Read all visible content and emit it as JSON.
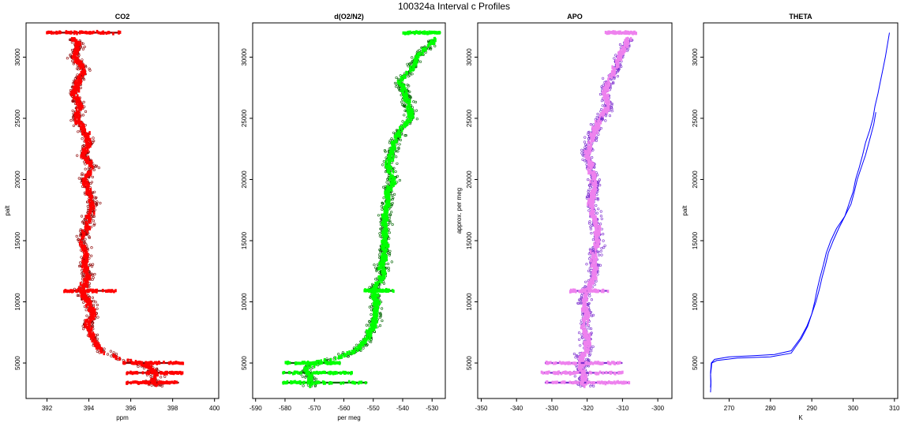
{
  "title": "100324a   Interval c Profiles",
  "chart_data": [
    {
      "type": "scatter",
      "title": "CO2",
      "xlabel": "ppm",
      "ylabel": "palt",
      "xlim": [
        391.0,
        400.2
      ],
      "ylim": [
        2100,
        32800
      ],
      "xticks": [
        392,
        394,
        396,
        398,
        400
      ],
      "yticks": [
        5000,
        10000,
        15000,
        20000,
        25000,
        30000
      ],
      "colors": {
        "points": "#ff0000",
        "outline": "#8b0000"
      },
      "series": [
        {
          "profile": [
            [
              393.0,
              32000
            ],
            [
              393.5,
              31000
            ],
            [
              393.3,
              30000
            ],
            [
              393.8,
              29000
            ],
            [
              393.5,
              28000
            ],
            [
              393.3,
              27000
            ],
            [
              393.6,
              26000
            ],
            [
              393.4,
              25000
            ],
            [
              393.8,
              24000
            ],
            [
              394.0,
              23000
            ],
            [
              393.7,
              22000
            ],
            [
              394.2,
              21000
            ],
            [
              393.8,
              20000
            ],
            [
              394.0,
              19000
            ],
            [
              394.2,
              18000
            ],
            [
              394.0,
              17000
            ],
            [
              393.9,
              16000
            ],
            [
              393.6,
              15000
            ],
            [
              393.9,
              14000
            ],
            [
              393.8,
              13000
            ],
            [
              394.0,
              12000
            ],
            [
              393.6,
              11000
            ],
            [
              394.0,
              10000
            ],
            [
              394.2,
              9000
            ],
            [
              393.9,
              8000
            ],
            [
              394.2,
              7000
            ],
            [
              394.6,
              6000
            ],
            [
              395.5,
              5300
            ],
            [
              396.5,
              5000
            ],
            [
              397.0,
              4500
            ],
            [
              397.2,
              4000
            ],
            [
              397.0,
              3500
            ],
            [
              397.5,
              3000
            ]
          ],
          "legs": [
            [
              392.0,
              395.5,
              32000
            ],
            [
              392.8,
              395.3,
              10900
            ],
            [
              395.6,
              398.5,
              5000
            ],
            [
              395.8,
              398.5,
              4200
            ],
            [
              395.8,
              398.3,
              3400
            ]
          ]
        }
      ]
    },
    {
      "type": "scatter",
      "title": "d(O2/N2)",
      "xlabel": "per meg",
      "ylabel": "",
      "xlim": [
        -591.0,
        -525.5
      ],
      "ylim": [
        2100,
        32800
      ],
      "xticks": [
        -590,
        -580,
        -570,
        -560,
        -550,
        -540,
        -530
      ],
      "yticks": [
        5000,
        10000,
        15000,
        20000,
        25000,
        30000
      ],
      "colors": {
        "points": "#00ff00",
        "outline": "#006400"
      },
      "series": [
        {
          "profile": [
            [
              -527,
              32000
            ],
            [
              -531,
              31000
            ],
            [
              -535,
              30000
            ],
            [
              -537,
              29000
            ],
            [
              -541,
              28000
            ],
            [
              -539,
              27000
            ],
            [
              -538,
              26000
            ],
            [
              -537,
              25000
            ],
            [
              -541,
              24000
            ],
            [
              -543,
              23000
            ],
            [
              -544,
              22000
            ],
            [
              -545,
              21000
            ],
            [
              -543,
              20000
            ],
            [
              -545,
              19000
            ],
            [
              -545,
              18000
            ],
            [
              -546,
              17000
            ],
            [
              -546,
              16000
            ],
            [
              -546,
              15000
            ],
            [
              -546,
              14000
            ],
            [
              -547,
              13000
            ],
            [
              -547,
              12000
            ],
            [
              -550,
              11000
            ],
            [
              -549,
              10000
            ],
            [
              -549,
              9000
            ],
            [
              -550,
              8000
            ],
            [
              -552,
              7000
            ],
            [
              -556,
              6000
            ],
            [
              -562,
              5400
            ],
            [
              -570,
              5000
            ],
            [
              -573,
              4500
            ],
            [
              -572,
              4000
            ],
            [
              -571,
              3500
            ],
            [
              -571,
              3000
            ]
          ],
          "legs": [
            [
              -540,
              -527,
              32000
            ],
            [
              -553,
              -543,
              10900
            ],
            [
              -580,
              -561,
              5000
            ],
            [
              -581,
              -557,
              4200
            ],
            [
              -581,
              -552,
              3400
            ]
          ]
        }
      ]
    },
    {
      "type": "scatter",
      "title": "APO",
      "xlabel": "",
      "ylabel": "approx. per meg",
      "xlim": [
        -351.0,
        -296.0
      ],
      "ylim": [
        2100,
        32800
      ],
      "xticks": [
        -350,
        -340,
        -330,
        -320,
        -310,
        -300
      ],
      "yticks": [
        5000,
        10000,
        15000,
        20000,
        25000,
        30000
      ],
      "colors": {
        "points": "#ee82ee",
        "outline": "#7b2ccf"
      },
      "series": [
        {
          "profile": [
            [
              -308,
              32000
            ],
            [
              -309,
              31000
            ],
            [
              -311,
              30000
            ],
            [
              -312,
              29000
            ],
            [
              -314,
              28000
            ],
            [
              -315,
              27000
            ],
            [
              -314,
              26000
            ],
            [
              -316,
              25000
            ],
            [
              -318,
              24000
            ],
            [
              -319,
              23000
            ],
            [
              -320,
              22000
            ],
            [
              -319,
              21000
            ],
            [
              -318,
              20000
            ],
            [
              -318,
              19000
            ],
            [
              -319,
              18000
            ],
            [
              -318,
              17000
            ],
            [
              -317,
              16000
            ],
            [
              -317,
              15000
            ],
            [
              -318,
              14000
            ],
            [
              -318,
              13000
            ],
            [
              -318,
              12000
            ],
            [
              -320,
              11000
            ],
            [
              -321,
              10000
            ],
            [
              -320,
              9000
            ],
            [
              -321,
              8000
            ],
            [
              -320,
              7000
            ],
            [
              -320,
              6000
            ],
            [
              -322,
              5400
            ],
            [
              -321,
              5000
            ],
            [
              -322,
              4500
            ],
            [
              -321,
              4000
            ],
            [
              -321,
              3500
            ],
            [
              -320,
              3000
            ]
          ],
          "legs": [
            [
              -315,
              -306,
              32000
            ],
            [
              -325,
              -314,
              10900
            ],
            [
              -332,
              -310,
              5000
            ],
            [
              -333,
              -310,
              4200
            ],
            [
              -332,
              -308,
              3400
            ]
          ]
        }
      ]
    },
    {
      "type": "line",
      "title": "THETA",
      "xlabel": "K",
      "ylabel": "palt",
      "xlim": [
        263.8,
        310.8
      ],
      "ylim": [
        2100,
        32800
      ],
      "xticks": [
        270,
        280,
        290,
        300,
        310
      ],
      "yticks": [
        5000,
        10000,
        15000,
        20000,
        25000,
        30000
      ],
      "colors": {
        "line": "#0000ff"
      },
      "series": [
        {
          "name": "",
          "points": [
            [
              265.5,
              2600
            ],
            [
              265.6,
              3200
            ],
            [
              265.5,
              4000
            ],
            [
              265.7,
              4600
            ],
            [
              265.8,
              5000
            ],
            [
              267.0,
              5200
            ],
            [
              272.0,
              5400
            ],
            [
              280.0,
              5500
            ],
            [
              285.0,
              5800
            ],
            [
              287.5,
              7000
            ],
            [
              289.0,
              8000
            ],
            [
              290.0,
              9000
            ],
            [
              291.0,
              10000
            ],
            [
              291.8,
              11000
            ],
            [
              292.5,
              12000
            ],
            [
              293.3,
              13000
            ],
            [
              294.0,
              14000
            ],
            [
              295.2,
              15000
            ],
            [
              296.5,
              16000
            ],
            [
              298.0,
              17000
            ],
            [
              299.0,
              18000
            ],
            [
              300.0,
              19000
            ],
            [
              300.6,
              20000
            ],
            [
              301.5,
              21000
            ],
            [
              302.3,
              22000
            ],
            [
              303.0,
              23000
            ],
            [
              304.0,
              24000
            ],
            [
              304.8,
              25000
            ],
            [
              305.3,
              26000
            ],
            [
              306.0,
              27000
            ],
            [
              306.6,
              28000
            ],
            [
              307.2,
              29000
            ],
            [
              307.8,
              30000
            ],
            [
              308.3,
              31000
            ],
            [
              308.8,
              32000
            ]
          ]
        },
        {
          "name": "",
          "points": [
            [
              305.5,
              25500
            ],
            [
              305.0,
              24500
            ],
            [
              304.2,
              23500
            ],
            [
              303.0,
              22000
            ],
            [
              302.0,
              21000
            ],
            [
              301.0,
              20000
            ],
            [
              300.3,
              19000
            ],
            [
              299.5,
              18000
            ],
            [
              298.0,
              17000
            ],
            [
              296.0,
              16000
            ],
            [
              294.6,
              15000
            ],
            [
              293.5,
              14000
            ],
            [
              292.8,
              13000
            ],
            [
              292.0,
              12000
            ],
            [
              291.3,
              11000
            ],
            [
              290.7,
              10000
            ],
            [
              290.0,
              9000
            ],
            [
              288.8,
              8000
            ],
            [
              287.2,
              7000
            ],
            [
              285.0,
              6000
            ],
            [
              281.0,
              5700
            ],
            [
              276.0,
              5600
            ],
            [
              270.0,
              5500
            ],
            [
              266.5,
              5300
            ],
            [
              265.7,
              5000
            ],
            [
              265.5,
              4200
            ],
            [
              265.6,
              3500
            ],
            [
              265.5,
              3000
            ]
          ]
        }
      ]
    }
  ]
}
